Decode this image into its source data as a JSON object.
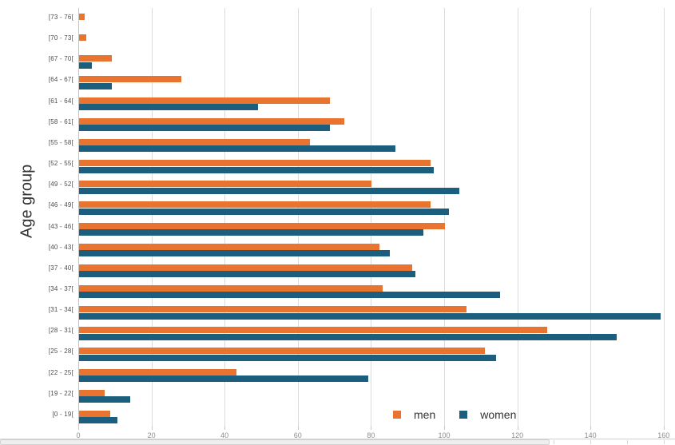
{
  "chart_data": {
    "type": "bar",
    "orientation": "horizontal",
    "title": "",
    "xlabel": "",
    "ylabel": "Age group",
    "xlim": [
      0,
      160
    ],
    "xticks": [
      0,
      20,
      40,
      60,
      80,
      100,
      120,
      140,
      160
    ],
    "grid": true,
    "legend_position": "bottom",
    "categories": [
      "[73 - 76[",
      "[70 - 73[",
      "[67 - 70[",
      "[64 - 67[",
      "[61 - 64[",
      "[58 - 61[",
      "[55 - 58[",
      "[52 - 55[",
      "[49 - 52[",
      "[46 - 49[",
      "[43 - 46[",
      "[40 - 43[",
      "[37 - 40[",
      "[34 - 37[",
      "[31 - 34[",
      "[28 - 31[",
      "[25 - 28[",
      "[22 - 25[",
      "[19 - 22[",
      "[0 - 19["
    ],
    "series": [
      {
        "name": "men",
        "color": "#E8742F",
        "values": [
          1.5,
          2,
          9,
          28,
          68.5,
          72.5,
          63,
          96,
          80,
          96,
          100,
          82,
          91,
          83,
          106,
          128,
          111,
          43,
          7,
          8.5
        ]
      },
      {
        "name": "women",
        "color": "#1B5E7D",
        "values": [
          0,
          0,
          3.5,
          9,
          49,
          68.5,
          86.5,
          97,
          104,
          101,
          94,
          85,
          92,
          115,
          159,
          147,
          114,
          79,
          14,
          10.5
        ]
      }
    ]
  },
  "legend": {
    "items": [
      {
        "label": "men",
        "color": "#E8742F"
      },
      {
        "label": "women",
        "color": "#1B5E7D"
      }
    ]
  },
  "colors": {
    "men": "#E8742F",
    "women": "#1B5E7D",
    "grid": "#dcdcdc",
    "tick_text": "#8c8c8c",
    "category_text": "#4d4d4d"
  }
}
